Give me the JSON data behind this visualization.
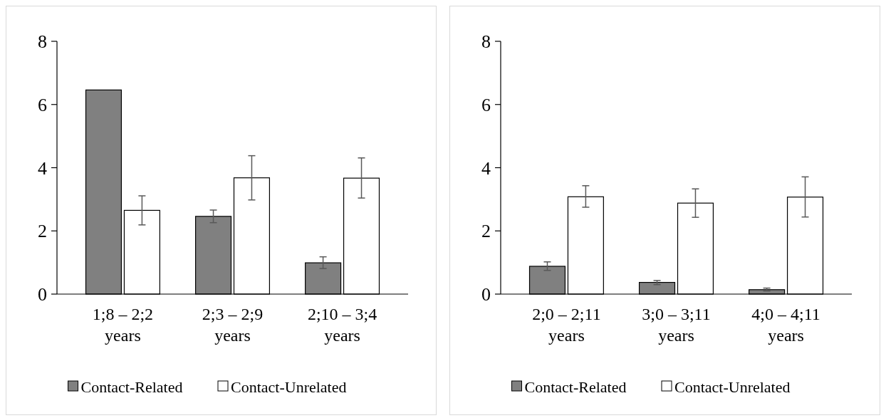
{
  "chart_data": [
    {
      "type": "bar",
      "categories": [
        "1;8 – 2;2 years",
        "2;3 – 2;9 years",
        "2;10 – 3;4 years"
      ],
      "series": [
        {
          "name": "Contact-Related",
          "color": "#808080",
          "values": [
            6.46,
            2.46,
            0.99
          ],
          "errors": [
            null,
            [
              2.26,
              2.66
            ],
            [
              0.81,
              1.18
            ]
          ]
        },
        {
          "name": "Contact-Unrelated",
          "color": "#ffffff",
          "values": [
            2.65,
            3.68,
            3.67
          ],
          "errors": [
            [
              2.19,
              3.11
            ],
            [
              2.98,
              4.38
            ],
            [
              3.04,
              4.31
            ]
          ]
        }
      ],
      "ylim": [
        0,
        8
      ],
      "yticks": [
        0,
        2,
        4,
        6,
        8
      ],
      "grid": false,
      "legend": "bottom"
    },
    {
      "type": "bar",
      "categories": [
        "2;0 – 2;11 years",
        "3;0 – 3;11 years",
        "4;0 – 4;11 years"
      ],
      "series": [
        {
          "name": "Contact-Related",
          "color": "#808080",
          "values": [
            0.88,
            0.37,
            0.14
          ],
          "errors": [
            [
              0.75,
              1.02
            ],
            [
              0.3,
              0.43
            ],
            [
              0.1,
              0.19
            ]
          ]
        },
        {
          "name": "Contact-Unrelated",
          "color": "#ffffff",
          "values": [
            3.08,
            2.88,
            3.07
          ],
          "errors": [
            [
              2.75,
              3.43
            ],
            [
              2.43,
              3.33
            ],
            [
              2.44,
              3.71
            ]
          ]
        }
      ],
      "ylim": [
        0,
        8
      ],
      "yticks": [
        0,
        2,
        4,
        6,
        8
      ],
      "grid": false,
      "legend": "bottom"
    }
  ]
}
